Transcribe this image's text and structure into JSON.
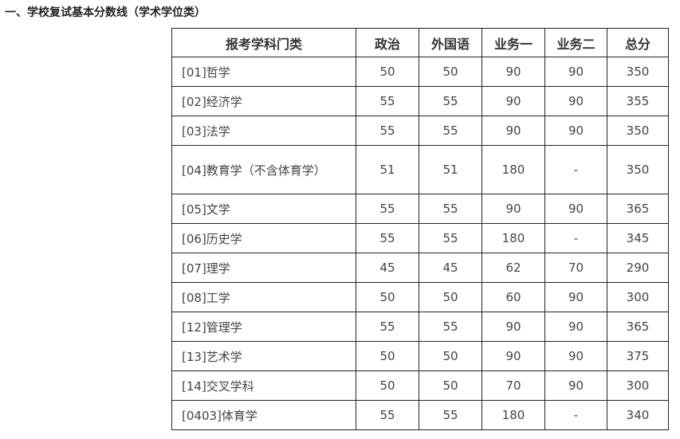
{
  "title": "一、学校复试基本分数线（学术学位类）",
  "table": {
    "headers": [
      "报考学科门类",
      "政治",
      "外国语",
      "业务一",
      "业务二",
      "总分"
    ],
    "rows": [
      [
        "[01]哲学",
        "50",
        "50",
        "90",
        "90",
        "350"
      ],
      [
        "[02]经济学",
        "55",
        "55",
        "90",
        "90",
        "355"
      ],
      [
        "[03]法学",
        "55",
        "55",
        "90",
        "90",
        "350"
      ],
      [
        "[04]教育学（不含体育学）",
        "51",
        "51",
        "180",
        "-",
        "350"
      ],
      [
        "[05]文学",
        "55",
        "55",
        "90",
        "90",
        "365"
      ],
      [
        "[06]历史学",
        "55",
        "55",
        "180",
        "-",
        "345"
      ],
      [
        "[07]理学",
        "45",
        "45",
        "62",
        "70",
        "290"
      ],
      [
        "[08]工学",
        "50",
        "50",
        "60",
        "90",
        "300"
      ],
      [
        "[12]管理学",
        "55",
        "55",
        "90",
        "90",
        "365"
      ],
      [
        "[13]艺术学",
        "50",
        "50",
        "90",
        "90",
        "375"
      ],
      [
        "[14]交叉学科",
        "50",
        "50",
        "70",
        "90",
        "300"
      ],
      [
        "[0403]体育学",
        "55",
        "55",
        "180",
        "-",
        "340"
      ]
    ]
  }
}
